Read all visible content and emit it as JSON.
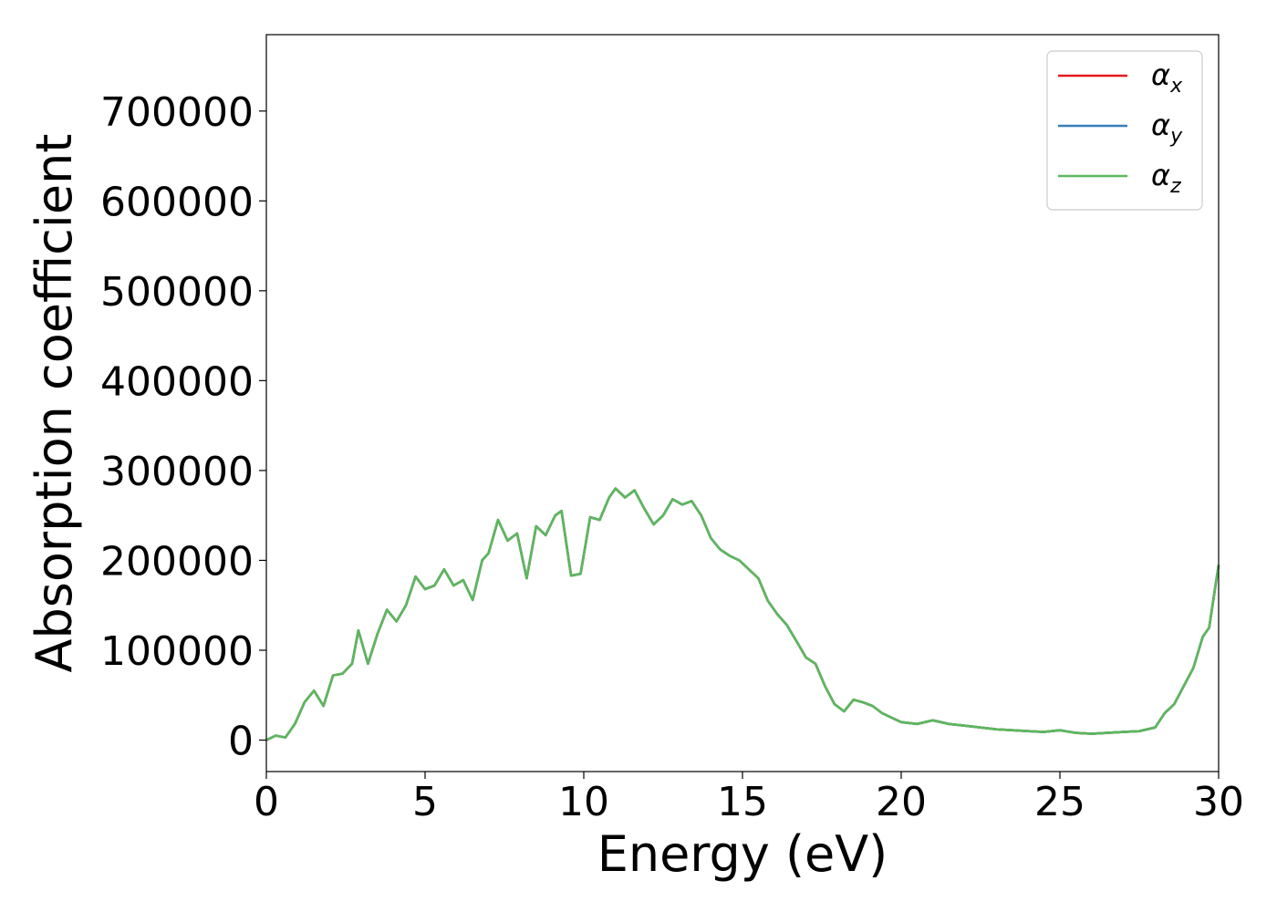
{
  "chart_data": {
    "type": "line",
    "xlabel": "Energy (eV)",
    "ylabel": "Absorption coefficient",
    "xlim": [
      0,
      30
    ],
    "ylim": [
      -35000,
      785000
    ],
    "xticks": [
      0,
      5,
      10,
      15,
      20,
      25,
      30
    ],
    "yticks": [
      0,
      100000,
      200000,
      300000,
      400000,
      500000,
      600000,
      700000
    ],
    "grid": false,
    "legend_position": "top-right",
    "x": [
      0,
      0.3,
      0.6,
      0.9,
      1.2,
      1.5,
      1.8,
      2.1,
      2.4,
      2.7,
      2.9,
      3.2,
      3.5,
      3.8,
      4.1,
      4.4,
      4.7,
      5.0,
      5.3,
      5.6,
      5.9,
      6.2,
      6.5,
      6.8,
      7.0,
      7.3,
      7.6,
      7.9,
      8.2,
      8.5,
      8.8,
      9.1,
      9.3,
      9.6,
      9.9,
      10.2,
      10.5,
      10.8,
      11.0,
      11.3,
      11.6,
      11.9,
      12.2,
      12.5,
      12.8,
      13.1,
      13.4,
      13.7,
      14.0,
      14.3,
      14.6,
      14.9,
      15.2,
      15.5,
      15.8,
      16.1,
      16.4,
      16.7,
      17.0,
      17.3,
      17.6,
      17.9,
      18.2,
      18.5,
      18.8,
      19.1,
      19.4,
      19.7,
      20.0,
      20.5,
      21.0,
      21.5,
      22.0,
      22.5,
      23.0,
      23.5,
      24.0,
      24.5,
      25.0,
      25.5,
      26.0,
      26.5,
      27.0,
      27.5,
      28.0,
      28.3,
      28.6,
      28.9,
      29.2,
      29.5,
      29.7,
      30.0
    ],
    "series": [
      {
        "name": "αx",
        "legend_symbol": "α",
        "legend_sub": "x",
        "color": "#e41a1c",
        "values": [
          0,
          5000,
          3000,
          18000,
          42000,
          55000,
          38000,
          72000,
          74000,
          85000,
          122000,
          85000,
          118000,
          145000,
          132000,
          150000,
          182000,
          168000,
          172000,
          190000,
          172000,
          178000,
          156000,
          200000,
          208000,
          245000,
          222000,
          230000,
          180000,
          238000,
          228000,
          250000,
          255000,
          183000,
          185000,
          248000,
          245000,
          270000,
          280000,
          270000,
          278000,
          258000,
          240000,
          250000,
          268000,
          262000,
          266000,
          250000,
          225000,
          212000,
          205000,
          200000,
          190000,
          180000,
          155000,
          140000,
          128000,
          110000,
          92000,
          85000,
          60000,
          40000,
          32000,
          45000,
          42000,
          38000,
          30000,
          25000,
          20000,
          18000,
          22000,
          18000,
          16000,
          14000,
          12000,
          11000,
          10000,
          9000,
          11000,
          8000,
          7000,
          8000,
          9000,
          10000,
          14000,
          30000,
          40000,
          60000,
          80000,
          115000,
          125000,
          195000
        ]
      },
      {
        "name": "αy",
        "legend_symbol": "α",
        "legend_sub": "y",
        "color": "#377eb8",
        "values": [
          0,
          5000,
          3000,
          18000,
          42000,
          55000,
          38000,
          72000,
          74000,
          85000,
          122000,
          85000,
          118000,
          145000,
          132000,
          150000,
          182000,
          168000,
          172000,
          190000,
          172000,
          178000,
          156000,
          200000,
          208000,
          245000,
          222000,
          230000,
          180000,
          238000,
          228000,
          250000,
          255000,
          183000,
          185000,
          248000,
          245000,
          270000,
          280000,
          270000,
          278000,
          258000,
          240000,
          250000,
          268000,
          262000,
          266000,
          250000,
          225000,
          212000,
          205000,
          200000,
          190000,
          180000,
          155000,
          140000,
          128000,
          110000,
          92000,
          85000,
          60000,
          40000,
          32000,
          45000,
          42000,
          38000,
          30000,
          25000,
          20000,
          18000,
          22000,
          18000,
          16000,
          14000,
          12000,
          11000,
          10000,
          9000,
          11000,
          8000,
          7000,
          8000,
          9000,
          10000,
          14000,
          30000,
          40000,
          60000,
          80000,
          115000,
          125000,
          195000
        ]
      },
      {
        "name": "αz",
        "legend_symbol": "α",
        "legend_sub": "z",
        "color": "#5cb85c",
        "values": [
          0,
          5000,
          3000,
          18000,
          42000,
          55000,
          38000,
          72000,
          74000,
          85000,
          122000,
          85000,
          118000,
          145000,
          132000,
          150000,
          182000,
          168000,
          172000,
          190000,
          172000,
          178000,
          156000,
          200000,
          208000,
          245000,
          222000,
          230000,
          180000,
          238000,
          228000,
          250000,
          255000,
          183000,
          185000,
          248000,
          245000,
          270000,
          280000,
          270000,
          278000,
          258000,
          240000,
          250000,
          268000,
          262000,
          266000,
          250000,
          225000,
          212000,
          205000,
          200000,
          190000,
          180000,
          155000,
          140000,
          128000,
          110000,
          92000,
          85000,
          60000,
          40000,
          32000,
          45000,
          42000,
          38000,
          30000,
          25000,
          20000,
          18000,
          22000,
          18000,
          16000,
          14000,
          12000,
          11000,
          10000,
          9000,
          11000,
          8000,
          7000,
          8000,
          9000,
          10000,
          14000,
          30000,
          40000,
          60000,
          80000,
          115000,
          125000,
          195000
        ]
      }
    ]
  }
}
